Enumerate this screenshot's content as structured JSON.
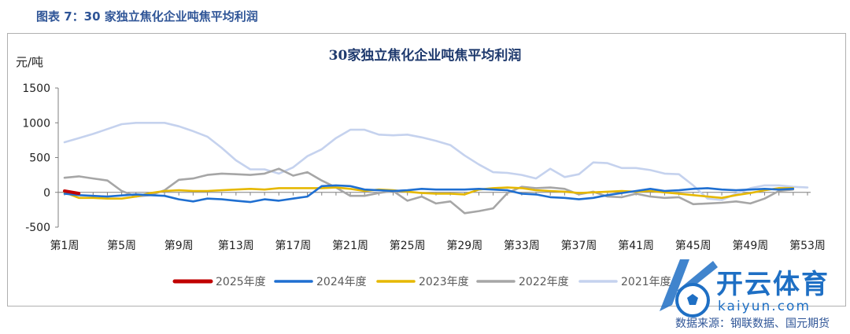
{
  "header": {
    "figure_caption": "图表 7：30 家独立焦化企业吨焦平均利润"
  },
  "footer": {
    "source": "数据来源：钢联数据、国元期货"
  },
  "watermark": {
    "brand": "开云体育",
    "url": "kaiyun.com",
    "icon": "soccer-ball-logo"
  },
  "chart_data": {
    "type": "line",
    "title": "30家独立焦化企业吨焦平均利润",
    "ylabel": "元/吨",
    "xlabel": "",
    "ylim": [
      -500,
      1500
    ],
    "yticks": [
      1500,
      1000,
      500,
      0,
      -500
    ],
    "x_tick_labels": [
      "第1周",
      "第5周",
      "第9周",
      "第13周",
      "第17周",
      "第21周",
      "第25周",
      "第29周",
      "第33周",
      "第37周",
      "第41周",
      "第45周",
      "第49周",
      "第53周"
    ],
    "x_tick_weeks": [
      1,
      5,
      9,
      13,
      17,
      21,
      25,
      29,
      33,
      37,
      41,
      45,
      49,
      53
    ],
    "x_range": [
      1,
      53
    ],
    "grid": false,
    "legend_position": "bottom",
    "series": [
      {
        "name": "2025年度",
        "color": "#c00000",
        "weeks": [
          1,
          2
        ],
        "values": [
          20,
          -15
        ]
      },
      {
        "name": "2024年度",
        "color": "#1f6fd1",
        "weeks": [
          1,
          2,
          3,
          4,
          5,
          6,
          7,
          8,
          9,
          10,
          11,
          12,
          13,
          14,
          15,
          16,
          17,
          18,
          19,
          20,
          21,
          22,
          23,
          24,
          25,
          26,
          27,
          28,
          29,
          30,
          31,
          32,
          33,
          34,
          35,
          36,
          37,
          38,
          39,
          40,
          41,
          42,
          43,
          44,
          45,
          46,
          47,
          48,
          49,
          50,
          51,
          52
        ],
        "values": [
          -20,
          -40,
          -50,
          -60,
          -45,
          -30,
          -40,
          -50,
          -100,
          -130,
          -90,
          -100,
          -120,
          -140,
          -100,
          -120,
          -90,
          -60,
          90,
          100,
          90,
          40,
          30,
          20,
          30,
          50,
          40,
          40,
          40,
          50,
          40,
          30,
          -20,
          -30,
          -70,
          -80,
          -100,
          -80,
          -40,
          -10,
          20,
          50,
          20,
          30,
          50,
          60,
          40,
          30,
          40,
          50,
          40,
          50
        ]
      },
      {
        "name": "2023年度",
        "color": "#e6b800",
        "weeks": [
          1,
          2,
          3,
          4,
          5,
          6,
          7,
          8,
          9,
          10,
          11,
          12,
          13,
          14,
          15,
          16,
          17,
          18,
          19,
          20,
          21,
          22,
          23,
          24,
          25,
          26,
          27,
          28,
          29,
          30,
          31,
          32,
          33,
          34,
          35,
          36,
          37,
          38,
          39,
          40,
          41,
          42,
          43,
          44,
          45,
          46,
          47,
          48,
          49,
          50,
          51,
          52
        ],
        "values": [
          0,
          -80,
          -80,
          -90,
          -90,
          -60,
          -10,
          20,
          30,
          20,
          20,
          30,
          40,
          50,
          40,
          60,
          60,
          60,
          60,
          70,
          50,
          20,
          40,
          30,
          10,
          -10,
          -20,
          -20,
          -30,
          40,
          60,
          70,
          60,
          30,
          20,
          10,
          -10,
          0,
          10,
          20,
          10,
          20,
          0,
          -20,
          -40,
          -60,
          -80,
          -40,
          -10,
          30,
          60,
          60
        ]
      },
      {
        "name": "2022年度",
        "color": "#a6a6a6",
        "weeks": [
          1,
          2,
          3,
          4,
          5,
          6,
          7,
          8,
          9,
          10,
          11,
          12,
          13,
          14,
          15,
          16,
          17,
          18,
          19,
          20,
          21,
          22,
          23,
          24,
          25,
          26,
          27,
          28,
          29,
          30,
          31,
          32,
          33,
          34,
          35,
          36,
          37,
          38,
          39,
          40,
          41,
          42,
          43,
          44,
          45,
          46,
          47,
          48,
          49,
          50,
          51,
          52
        ],
        "values": [
          210,
          230,
          200,
          170,
          20,
          -60,
          -40,
          30,
          180,
          200,
          250,
          270,
          260,
          250,
          270,
          340,
          240,
          290,
          170,
          70,
          -50,
          -50,
          -10,
          20,
          -120,
          -60,
          -160,
          -130,
          -300,
          -270,
          -230,
          -10,
          80,
          60,
          70,
          50,
          -30,
          10,
          -60,
          -70,
          -20,
          -60,
          -80,
          -70,
          -170,
          -160,
          -150,
          -130,
          -160,
          -90,
          20,
          40
        ]
      },
      {
        "name": "2021年度",
        "color": "#c5d2ee",
        "weeks": [
          1,
          2,
          3,
          4,
          5,
          6,
          7,
          8,
          9,
          10,
          11,
          12,
          13,
          14,
          15,
          16,
          17,
          18,
          19,
          20,
          21,
          22,
          23,
          24,
          25,
          26,
          27,
          28,
          29,
          30,
          31,
          32,
          33,
          34,
          35,
          36,
          37,
          38,
          39,
          40,
          41,
          42,
          43,
          44,
          45,
          46,
          47,
          48,
          49,
          50,
          51,
          52,
          53
        ],
        "values": [
          720,
          780,
          840,
          910,
          980,
          1000,
          1000,
          1000,
          950,
          880,
          800,
          640,
          460,
          330,
          330,
          270,
          360,
          520,
          620,
          780,
          900,
          900,
          830,
          820,
          830,
          790,
          740,
          680,
          530,
          400,
          290,
          280,
          250,
          200,
          340,
          220,
          260,
          430,
          420,
          350,
          350,
          320,
          270,
          260,
          100,
          -90,
          -110,
          -20,
          60,
          100,
          100,
          80,
          70
        ]
      }
    ]
  }
}
